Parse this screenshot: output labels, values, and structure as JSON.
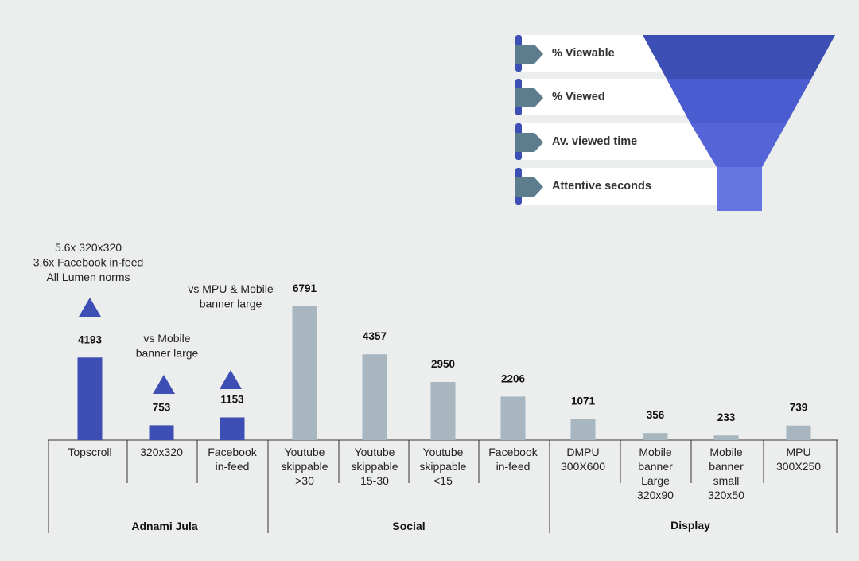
{
  "colors": {
    "background": "#eceeed",
    "highlight_bar": "#3d4eb4",
    "comparison_bar": "#a8b6c0",
    "axis": "#333333",
    "funnel_1": "#3d4eb4",
    "funnel_2": "#4a5cd0",
    "funnel_3": "#5565d8",
    "funnel_4": "#6675e2",
    "tab": "#5d7d8e",
    "tab_accent": "#3d4eb4"
  },
  "legend": {
    "items": [
      {
        "label": "% Viewable"
      },
      {
        "label": "% Viewed"
      },
      {
        "label": "Av. viewed time"
      },
      {
        "label": "Attentive seconds"
      }
    ]
  },
  "chart_data": {
    "type": "bar",
    "categories": [
      "Topscroll",
      "320x320",
      "Facebook\nin-feed",
      "Youtube\nskippable\n>30",
      "Youtube\nskippable\n15-30",
      "Youtube\nskippable\n<15",
      "Facebook\nin-feed",
      "DMPU\n300X600",
      "Mobile\nbanner\nLarge\n320x90",
      "Mobile\nbanner\nsmall\n320x50",
      "MPU\n300X250"
    ],
    "values": [
      4193,
      753,
      1153,
      6791,
      4357,
      2950,
      2206,
      1071,
      356,
      233,
      739
    ],
    "highlighted": [
      true,
      true,
      true,
      false,
      false,
      false,
      false,
      false,
      false,
      false,
      false
    ],
    "groups": [
      {
        "label": "Adnami Jula",
        "start": 0,
        "end": 2
      },
      {
        "label": "Social",
        "start": 3,
        "end": 6
      },
      {
        "label": "Display",
        "start": 7,
        "end": 10
      }
    ],
    "annotations": [
      {
        "index": 0,
        "text": "5.6x 320x320\n3.6x Facebook in-feed\nAll Lumen norms",
        "marker": "triangle-up"
      },
      {
        "index": 1,
        "text": "vs Mobile\nbanner large",
        "marker": "triangle-up"
      },
      {
        "index": 2,
        "text": "vs MPU & Mobile\nbanner large",
        "marker": "triangle-up"
      }
    ],
    "ylim": [
      0,
      6791
    ]
  }
}
